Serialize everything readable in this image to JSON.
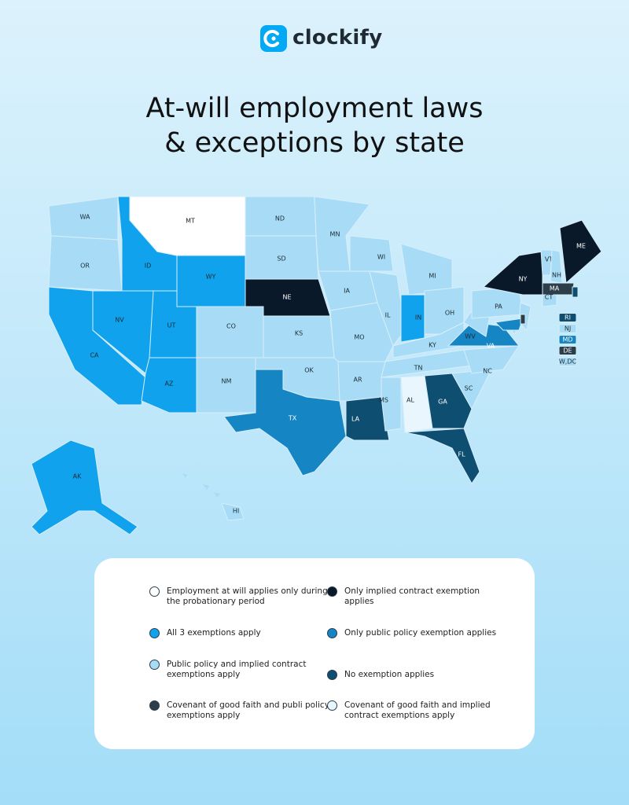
{
  "logo": "clockify",
  "title": [
    "At-will employment laws",
    "& exceptions by state"
  ],
  "legend": [
    {
      "label": "Employment at will applies only during the probationary period",
      "color": "#ffffff",
      "text_color": "#222222"
    },
    {
      "label": "All 3 exemptions apply",
      "color": "#10a2ec",
      "text_color": "#1a2a35"
    },
    {
      "label": "Public policy and implied contract exemptions apply",
      "color": "#a8dcf6",
      "text_color": "#1a2a35"
    },
    {
      "label": "Covenant of good faith and publi policy exemptions apply",
      "color": "#2c3e4a",
      "text_color": "#ffffff"
    },
    {
      "label": "Only implied contract exemption applies",
      "color": "#0a1929",
      "text_color": "#ffffff"
    },
    {
      "label": "Only public policy exemption applies",
      "color": "#1585c4",
      "text_color": "#ffffff"
    },
    {
      "label": "No exemption applies",
      "color": "#0e4e70",
      "text_color": "#ffffff"
    },
    {
      "label": "Covenant of good faith and implied contract exemptions apply",
      "color": "#e9f6fd",
      "text_color": "#1a2a35"
    }
  ],
  "states": [
    {
      "label": "WA",
      "category": 2
    },
    {
      "label": "OR",
      "category": 2
    },
    {
      "label": "CA",
      "category": 1
    },
    {
      "label": "NV",
      "category": 1
    },
    {
      "label": "ID",
      "category": 1
    },
    {
      "label": "MT",
      "category": 0
    },
    {
      "label": "WY",
      "category": 1
    },
    {
      "label": "UT",
      "category": 1
    },
    {
      "label": "AZ",
      "category": 1
    },
    {
      "label": "CO",
      "category": 2
    },
    {
      "label": "NM",
      "category": 2
    },
    {
      "label": "ND",
      "category": 2
    },
    {
      "label": "SD",
      "category": 2
    },
    {
      "label": "NE",
      "category": 4
    },
    {
      "label": "KS",
      "category": 2
    },
    {
      "label": "OK",
      "category": 2
    },
    {
      "label": "TX",
      "category": 5
    },
    {
      "label": "MN",
      "category": 2
    },
    {
      "label": "IA",
      "category": 2
    },
    {
      "label": "MO",
      "category": 2
    },
    {
      "label": "AR",
      "category": 2
    },
    {
      "label": "LA",
      "category": 6
    },
    {
      "label": "WI",
      "category": 2
    },
    {
      "label": "IL",
      "category": 2
    },
    {
      "label": "MI",
      "category": 2
    },
    {
      "label": "IN",
      "category": 1
    },
    {
      "label": "OH",
      "category": 2
    },
    {
      "label": "KY",
      "category": 2
    },
    {
      "label": "TN",
      "category": 2
    },
    {
      "label": "MS",
      "category": 2
    },
    {
      "label": "AL",
      "category": 7
    },
    {
      "label": "GA",
      "category": 6
    },
    {
      "label": "FL",
      "category": 6
    },
    {
      "label": "SC",
      "category": 2
    },
    {
      "label": "NC",
      "category": 2
    },
    {
      "label": "VA",
      "category": 5
    },
    {
      "label": "WV",
      "category": 2
    },
    {
      "label": "PA",
      "category": 2
    },
    {
      "label": "NY",
      "category": 4
    },
    {
      "label": "VT",
      "category": 2
    },
    {
      "label": "NH",
      "category": 2
    },
    {
      "label": "ME",
      "category": 4
    },
    {
      "label": "MA",
      "category": 3
    },
    {
      "label": "CT",
      "category": 2
    },
    {
      "label": "AK",
      "category": 1
    },
    {
      "label": "HI",
      "category": 2
    },
    {
      "label": "RI",
      "category": 6
    },
    {
      "label": "NJ",
      "category": 2
    },
    {
      "label": "MD",
      "category": 5
    },
    {
      "label": "DE",
      "category": 3
    },
    {
      "label": "W,DC",
      "category": 2
    }
  ]
}
